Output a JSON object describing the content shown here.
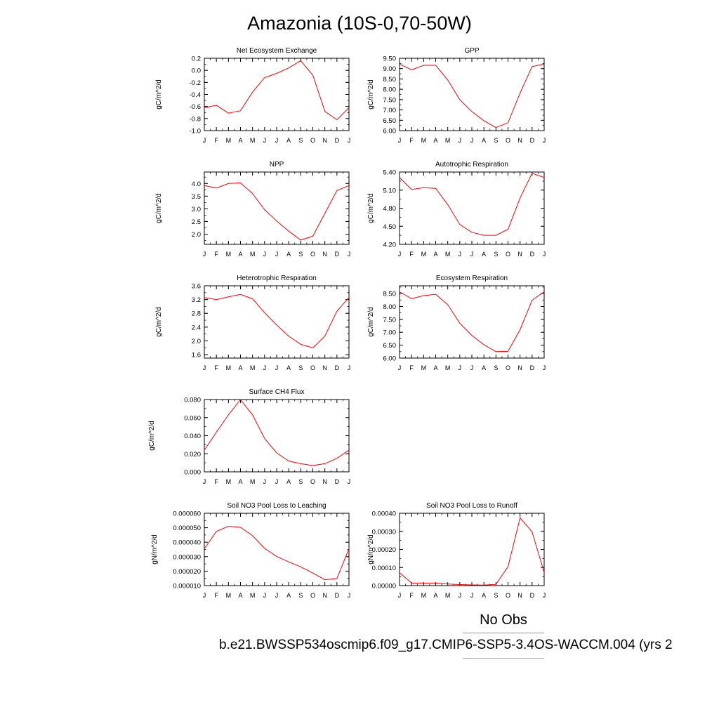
{
  "title": "Amazonia (10S-0,70-50W)",
  "legend": {
    "label": "No Obs",
    "obs_color": "#8c8cf0",
    "model_color": "#f08c8c"
  },
  "footer": "b.e21.BWSSP534oscmip6.f09_g17.CMIP6-SSP5-3.4OS-WACCM.004 (yrs 2",
  "colors": {
    "line": "#ff0000",
    "axis": "#000000"
  },
  "chart_data": [
    {
      "type": "line",
      "title": "Net Ecosystem Exchange",
      "ylabel": "gC/m^2/d",
      "categories": [
        "J",
        "F",
        "M",
        "A",
        "M",
        "J",
        "J",
        "A",
        "S",
        "O",
        "N",
        "D",
        "J"
      ],
      "ylim": [
        -1.0,
        0.2
      ],
      "yticks": [
        "0.2",
        "0.0",
        "-0.2",
        "-0.4",
        "-0.6",
        "-0.8",
        "-1.0"
      ],
      "ytick_values": [
        0.2,
        0.0,
        -0.2,
        -0.4,
        -0.6,
        -0.8,
        -1.0
      ],
      "values": [
        -0.62,
        -0.58,
        -0.71,
        -0.67,
        -0.36,
        -0.12,
        -0.05,
        0.04,
        0.16,
        -0.08,
        -0.68,
        -0.82,
        -0.62
      ]
    },
    {
      "type": "line",
      "title": "GPP",
      "ylabel": "gC/m^2/d",
      "categories": [
        "J",
        "F",
        "M",
        "A",
        "M",
        "J",
        "J",
        "A",
        "S",
        "O",
        "N",
        "D",
        "J"
      ],
      "ylim": [
        6.0,
        9.5
      ],
      "yticks": [
        "9.50",
        "9.00",
        "8.50",
        "8.00",
        "7.50",
        "7.00",
        "6.50",
        "6.00"
      ],
      "ytick_values": [
        9.5,
        9.0,
        8.5,
        8.0,
        7.5,
        7.0,
        6.5,
        6.0
      ],
      "values": [
        9.22,
        8.94,
        9.16,
        9.16,
        8.45,
        7.5,
        6.92,
        6.48,
        6.15,
        6.38,
        7.82,
        9.1,
        9.22
      ]
    },
    {
      "type": "line",
      "title": "NPP",
      "ylabel": "gC/m^2/d",
      "categories": [
        "J",
        "F",
        "M",
        "A",
        "M",
        "J",
        "J",
        "A",
        "S",
        "O",
        "N",
        "D",
        "J"
      ],
      "ylim": [
        1.6,
        4.45
      ],
      "yticks": [
        "4.0",
        "3.5",
        "3.0",
        "2.5",
        "2.0"
      ],
      "ytick_values": [
        4.0,
        3.5,
        3.0,
        2.5,
        2.0
      ],
      "values": [
        3.92,
        3.82,
        4.0,
        4.02,
        3.6,
        2.97,
        2.52,
        2.12,
        1.77,
        1.92,
        2.82,
        3.72,
        3.92
      ]
    },
    {
      "type": "line",
      "title": "Autotrophic Respiration",
      "ylabel": "gC/m^2/d",
      "categories": [
        "J",
        "F",
        "M",
        "A",
        "M",
        "J",
        "J",
        "A",
        "S",
        "O",
        "N",
        "D",
        "J"
      ],
      "ylim": [
        4.2,
        5.4
      ],
      "yticks": [
        "5.40",
        "5.10",
        "4.80",
        "4.50",
        "4.20"
      ],
      "ytick_values": [
        5.4,
        5.1,
        4.8,
        4.5,
        4.2
      ],
      "values": [
        5.31,
        5.11,
        5.14,
        5.13,
        4.86,
        4.53,
        4.4,
        4.35,
        4.35,
        4.45,
        4.97,
        5.38,
        5.31
      ]
    },
    {
      "type": "line",
      "title": "Heterotrophic Respiration",
      "ylabel": "gC/m^2/d",
      "categories": [
        "J",
        "F",
        "M",
        "A",
        "M",
        "J",
        "J",
        "A",
        "S",
        "O",
        "N",
        "D",
        "J"
      ],
      "ylim": [
        1.5,
        3.6
      ],
      "yticks": [
        "3.6",
        "3.2",
        "2.8",
        "2.4",
        "2.0",
        "1.6"
      ],
      "ytick_values": [
        3.6,
        3.2,
        2.8,
        2.4,
        2.0,
        1.6
      ],
      "values": [
        3.26,
        3.2,
        3.28,
        3.35,
        3.22,
        2.82,
        2.46,
        2.14,
        1.9,
        1.8,
        2.14,
        2.86,
        3.26
      ]
    },
    {
      "type": "line",
      "title": "Ecosystem Respiration",
      "ylabel": "gC/m^2/d",
      "categories": [
        "J",
        "F",
        "M",
        "A",
        "M",
        "J",
        "J",
        "A",
        "S",
        "O",
        "N",
        "D",
        "J"
      ],
      "ylim": [
        6.0,
        8.8
      ],
      "yticks": [
        "8.50",
        "8.00",
        "7.50",
        "7.00",
        "6.50",
        "6.00"
      ],
      "ytick_values": [
        8.5,
        8.0,
        7.5,
        7.0,
        6.5,
        6.0
      ],
      "values": [
        8.57,
        8.3,
        8.42,
        8.47,
        8.07,
        7.35,
        6.88,
        6.52,
        6.25,
        6.26,
        7.1,
        8.24,
        8.57
      ]
    },
    {
      "type": "line",
      "title": "Surface CH4 Flux",
      "ylabel": "gC/m^2/d",
      "categories": [
        "J",
        "F",
        "M",
        "A",
        "M",
        "J",
        "J",
        "A",
        "S",
        "O",
        "N",
        "D",
        "J"
      ],
      "ylim": [
        0.0,
        0.08
      ],
      "yticks": [
        "0.080",
        "0.060",
        "0.040",
        "0.020",
        "0.000"
      ],
      "ytick_values": [
        0.08,
        0.06,
        0.04,
        0.02,
        0.0
      ],
      "values": [
        0.024,
        0.044,
        0.063,
        0.08,
        0.063,
        0.037,
        0.021,
        0.012,
        0.009,
        0.007,
        0.009,
        0.015,
        0.024
      ]
    },
    null,
    {
      "type": "line",
      "title": "Soil NO3 Pool Loss to Leaching",
      "ylabel": "gN/m^2/d",
      "categories": [
        "J",
        "F",
        "M",
        "A",
        "M",
        "J",
        "J",
        "A",
        "S",
        "O",
        "N",
        "D",
        "J"
      ],
      "ylim": [
        1e-05,
        6e-05
      ],
      "yticks": [
        "0.000060",
        "0.000050",
        "0.000040",
        "0.000030",
        "0.000020",
        "0.000010"
      ],
      "ytick_values": [
        6e-05,
        5e-05,
        4e-05,
        3e-05,
        2e-05,
        1e-05
      ],
      "values": [
        3.55e-05,
        4.75e-05,
        5.1e-05,
        5.03e-05,
        4.45e-05,
        3.58e-05,
        3.02e-05,
        2.64e-05,
        2.3e-05,
        1.87e-05,
        1.41e-05,
        1.49e-05,
        3.55e-05
      ]
    },
    {
      "type": "line",
      "title": "Soil NO3 Pool Loss to Runoff",
      "ylabel": "gN/m^2/d",
      "categories": [
        "J",
        "F",
        "M",
        "A",
        "M",
        "J",
        "J",
        "A",
        "S",
        "O",
        "N",
        "D",
        "J"
      ],
      "ylim": [
        0.0,
        0.0004
      ],
      "yticks": [
        "0.00040",
        "0.00030",
        "0.00020",
        "0.00010",
        "0.00000"
      ],
      "ytick_values": [
        0.0004,
        0.0003,
        0.0002,
        0.0001,
        0.0
      ],
      "values": [
        7.2e-05,
        1.4e-05,
        1.4e-05,
        1.4e-05,
        9e-06,
        6e-06,
        4e-06,
        3e-06,
        7e-06,
        0.000105,
        0.000375,
        0.000297,
        7.2e-05
      ]
    }
  ]
}
